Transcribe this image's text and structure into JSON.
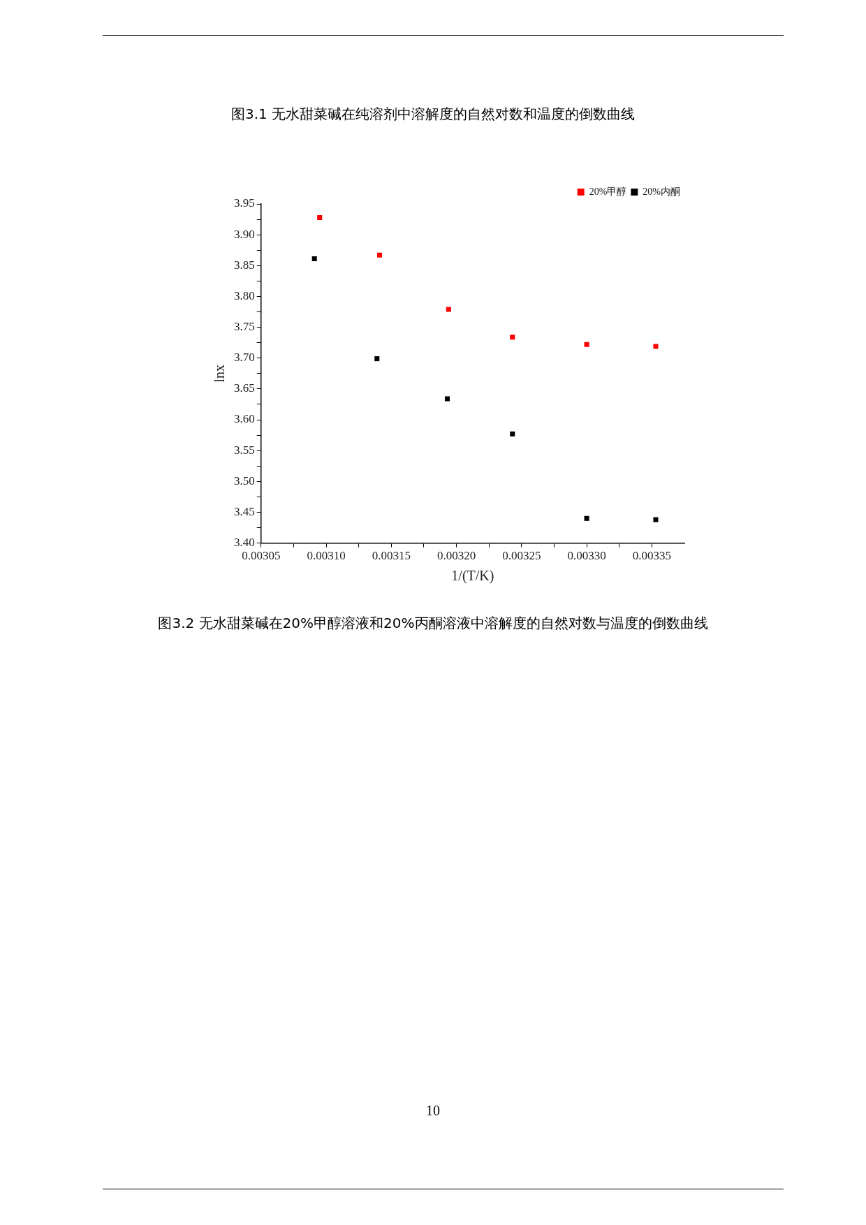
{
  "chart_data": {
    "type": "scatter",
    "title": "图3.2 无水甜菜碱在20%甲醇溶液和20%丙酮溶液中溶解度的自然对数与温度的倒数曲线",
    "xlabel": "1/(T/K)",
    "ylabel": "lnx",
    "annotations": [
      "图3.1 无水甜菜碱在纯溶剂中溶解度的自然对数和温度的倒数曲线",
      "10"
    ],
    "series": [
      {
        "name": "20%甲醇",
        "color": "#ff0000",
        "x": [
          0.003095,
          0.003141,
          0.003194,
          0.003243,
          0.0033,
          0.003353
        ],
        "values": [
          3.928,
          3.867,
          3.779,
          3.734,
          3.722,
          3.719
        ]
      },
      {
        "name": "20%内酮",
        "color": "#000000",
        "x": [
          0.003091,
          0.003139,
          0.003193,
          0.003243,
          0.0033,
          0.003353
        ],
        "values": [
          3.861,
          3.699,
          3.634,
          3.577,
          3.44,
          3.438
        ]
      }
    ],
    "xlim": [
      0.00305,
      0.003375
    ],
    "xticks": [
      {
        "value": 0.00305,
        "label": "0.00305"
      },
      {
        "value": 0.003075,
        "label": null
      },
      {
        "value": 0.0031,
        "label": "0.00310"
      },
      {
        "value": 0.003125,
        "label": null
      },
      {
        "value": 0.00315,
        "label": "0.00315"
      },
      {
        "value": 0.003175,
        "label": null
      },
      {
        "value": 0.0032,
        "label": "0.00320"
      },
      {
        "value": 0.003225,
        "label": null
      },
      {
        "value": 0.00325,
        "label": "0.00325"
      },
      {
        "value": 0.003275,
        "label": null
      },
      {
        "value": 0.0033,
        "label": "0.00330"
      },
      {
        "value": 0.003325,
        "label": null
      },
      {
        "value": 0.00335,
        "label": "0.00335"
      }
    ],
    "ylim": [
      3.4,
      3.95
    ],
    "yticks": [
      {
        "value": 3.4,
        "label": "3.40"
      },
      {
        "value": 3.425,
        "label": null
      },
      {
        "value": 3.45,
        "label": "3.45"
      },
      {
        "value": 3.475,
        "label": null
      },
      {
        "value": 3.5,
        "label": "3.50"
      },
      {
        "value": 3.525,
        "label": null
      },
      {
        "value": 3.55,
        "label": "3.55"
      },
      {
        "value": 3.575,
        "label": null
      },
      {
        "value": 3.6,
        "label": "3.60"
      },
      {
        "value": 3.625,
        "label": null
      },
      {
        "value": 3.65,
        "label": "3.65"
      },
      {
        "value": 3.675,
        "label": null
      },
      {
        "value": 3.7,
        "label": "3.70"
      },
      {
        "value": 3.725,
        "label": null
      },
      {
        "value": 3.75,
        "label": "3.75"
      },
      {
        "value": 3.775,
        "label": null
      },
      {
        "value": 3.8,
        "label": "3.80"
      },
      {
        "value": 3.825,
        "label": null
      },
      {
        "value": 3.85,
        "label": "3.85"
      },
      {
        "value": 3.875,
        "label": null
      },
      {
        "value": 3.9,
        "label": "3.90"
      },
      {
        "value": 3.925,
        "label": null
      },
      {
        "value": 3.95,
        "label": "3.95"
      }
    ],
    "grid": false,
    "legend": "top right",
    "marker": "square"
  }
}
